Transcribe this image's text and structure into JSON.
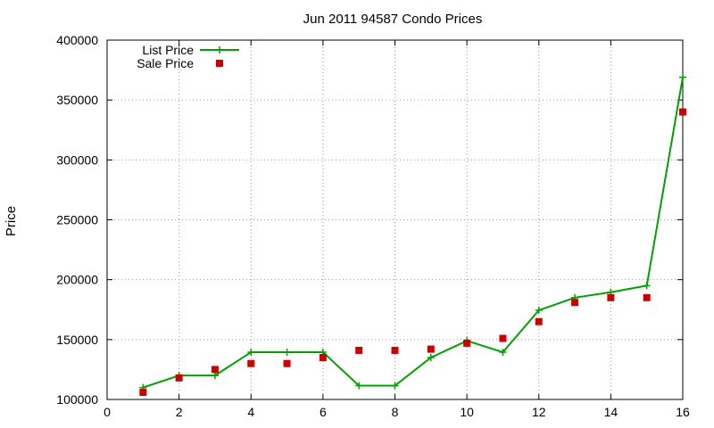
{
  "chart_data": {
    "type": "line",
    "title": "Jun 2011 94587 Condo Prices",
    "xlabel": "",
    "ylabel": "Price",
    "xlim": [
      0,
      16
    ],
    "ylim": [
      100000,
      400000
    ],
    "xticks": [
      0,
      2,
      4,
      6,
      8,
      10,
      12,
      14,
      16
    ],
    "yticks": [
      100000,
      150000,
      200000,
      250000,
      300000,
      350000,
      400000
    ],
    "grid": true,
    "legend_position": "top-left",
    "series": [
      {
        "name": "List Price",
        "style": "line+plus",
        "color": "#00a000",
        "x": [
          1,
          2,
          3,
          4,
          5,
          6,
          7,
          8,
          9,
          10,
          11,
          12,
          13,
          14,
          15,
          16
        ],
        "y": [
          110000,
          120000,
          120000,
          139500,
          139500,
          139500,
          111500,
          111500,
          135000,
          149000,
          139500,
          174500,
          185000,
          189500,
          195000,
          369000
        ]
      },
      {
        "name": "Sale Price",
        "style": "square",
        "color": "#cc0000",
        "x": [
          1,
          2,
          3,
          4,
          5,
          6,
          7,
          8,
          9,
          10,
          11,
          12,
          13,
          14,
          15,
          16
        ],
        "y": [
          106000,
          118000,
          125000,
          130000,
          130000,
          135000,
          141000,
          141000,
          142000,
          147000,
          151000,
          165000,
          181000,
          185000,
          185000,
          340000
        ]
      }
    ]
  }
}
